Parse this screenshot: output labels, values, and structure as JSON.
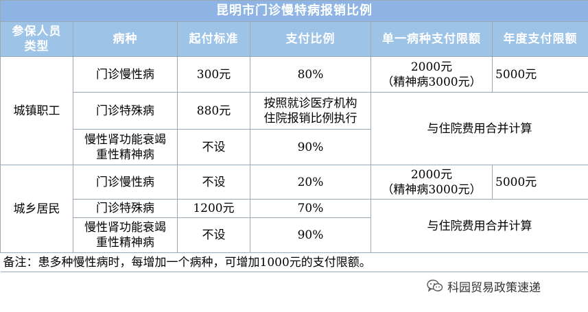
{
  "title": "昆明市门诊慢特病报销比例",
  "headers": {
    "type": [
      "参保人员",
      "类型"
    ],
    "disease": "病种",
    "deductible": "起付标准",
    "ratio": "支付比例",
    "single_limit": "单一病种支付限额",
    "annual_limit": "年度支付限额"
  },
  "groups": [
    {
      "type": "城镇职工",
      "rows": [
        {
          "disease": [
            "门诊慢性病"
          ],
          "deductible": "300元",
          "ratio": [
            "80%"
          ],
          "single_limit": [
            "2000元",
            "（精神病3000元）"
          ],
          "annual_limit": "5000元"
        },
        {
          "disease": [
            "门诊特殊病"
          ],
          "deductible": "880元",
          "ratio": [
            "按照就诊医疗机构",
            "住院报销比例执行"
          ]
        },
        {
          "disease": [
            "慢性肾功能衰竭",
            "重性精神病"
          ],
          "deductible": "不设",
          "ratio": [
            "90%"
          ]
        }
      ],
      "merged_limit": "与住院费用合并计算"
    },
    {
      "type": "城乡居民",
      "rows": [
        {
          "disease": [
            "门诊慢性病"
          ],
          "deductible": "不设",
          "ratio": [
            "20%"
          ],
          "single_limit": [
            "2000元",
            "（精神病3000元）"
          ],
          "annual_limit": "5000元"
        },
        {
          "disease": [
            "门诊特殊病"
          ],
          "deductible": "1200元",
          "ratio": [
            "70%"
          ]
        },
        {
          "disease": [
            "慢性肾功能衰竭",
            "重性精神病"
          ],
          "deductible": "不设",
          "ratio": [
            "90%"
          ]
        }
      ],
      "merged_limit": "与住院费用合并计算"
    }
  ],
  "note": "备注：患多种慢性病时，每增加一个病种，可增加1000元的支付限额。",
  "watermark": {
    "text": "科园贸易政策速递",
    "icon": "wechat-icon"
  }
}
